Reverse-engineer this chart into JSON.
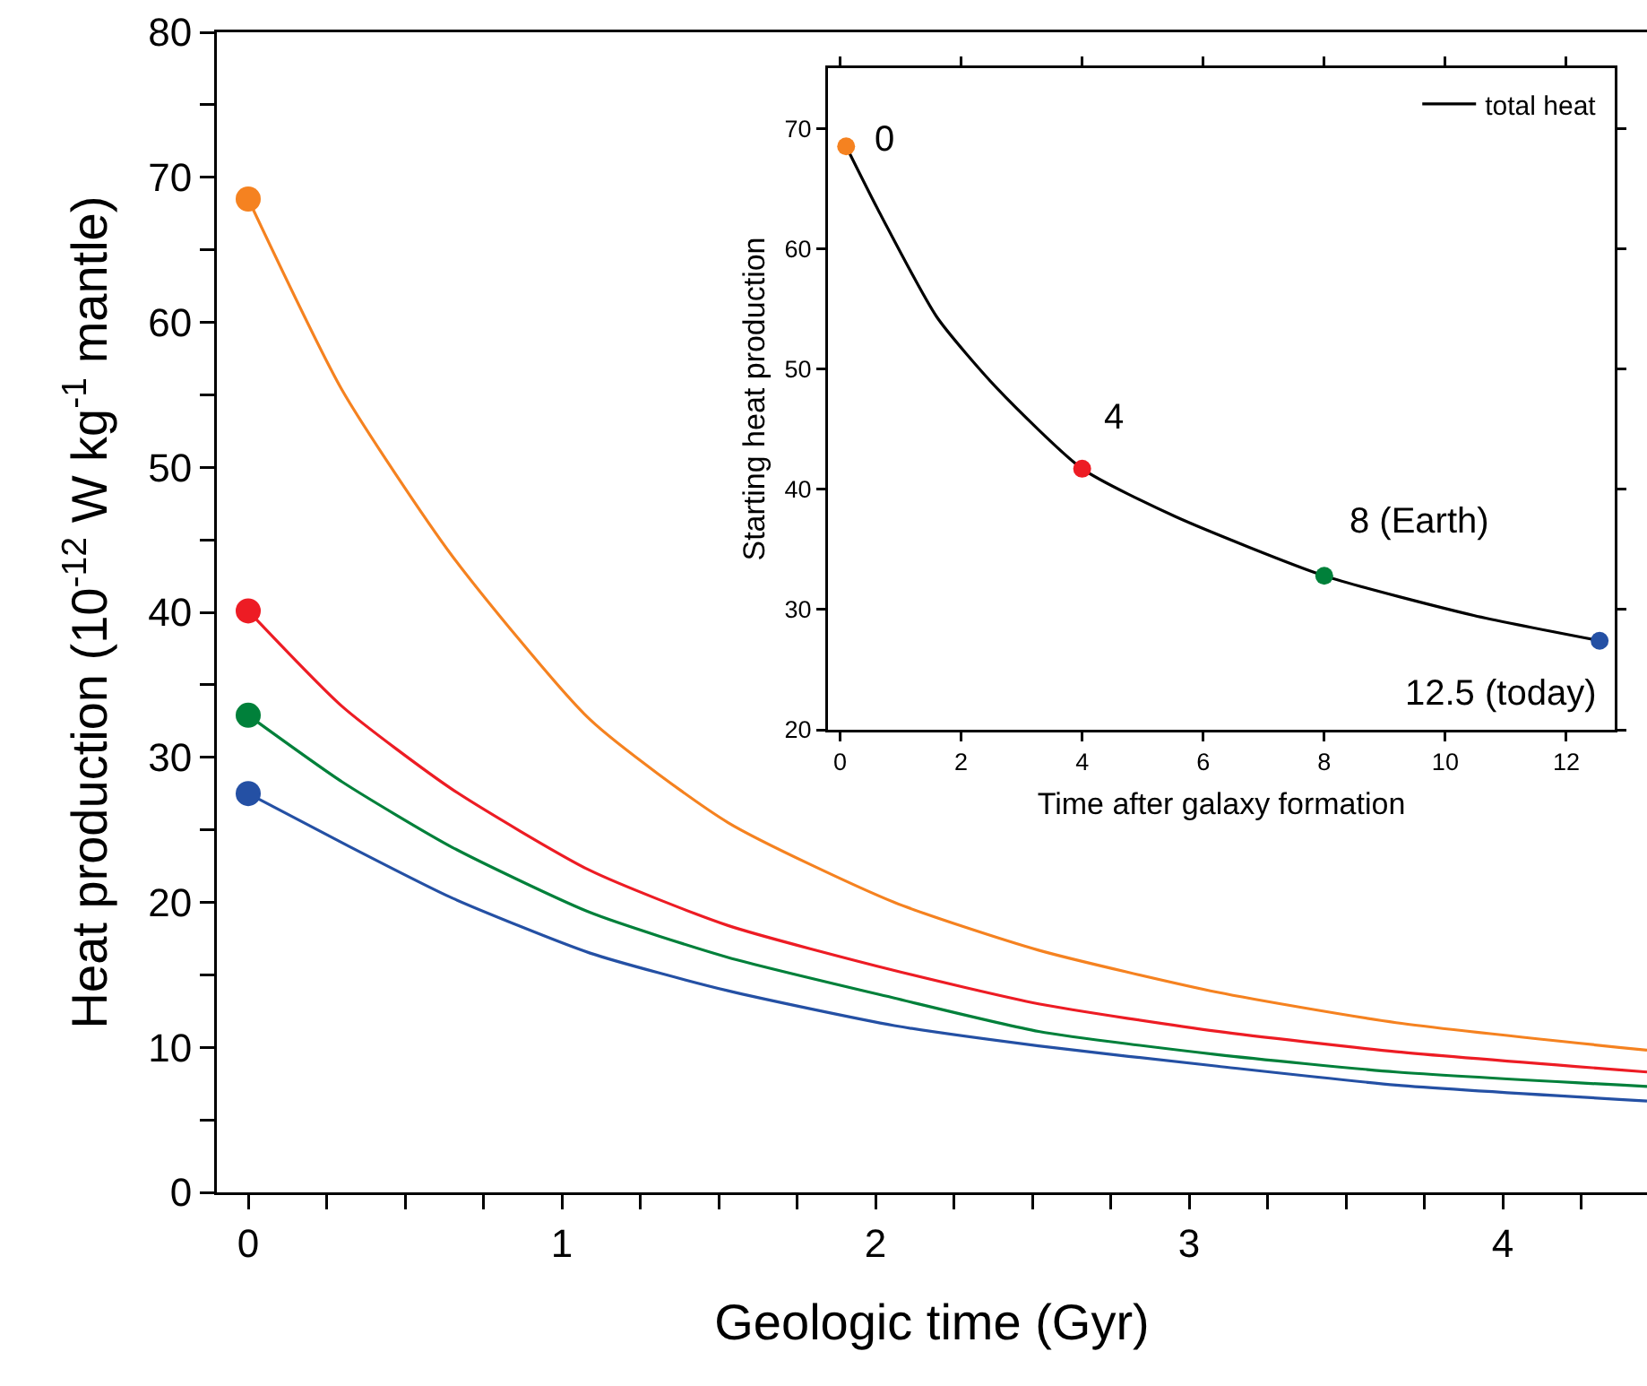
{
  "chart_data": [
    {
      "type": "line",
      "xlabel": "Geologic time (Gyr)",
      "ylabel": "Heat production (10$^{-12}$ W kg$^{-1}$ mantle)",
      "xlim": [
        -0.1,
        4.46
      ],
      "ylim": [
        0,
        80
      ],
      "xticks": [
        0,
        {
          "value": 0.25,
          "label": null
        },
        {
          "value": 0.5,
          "label": null
        },
        {
          "value": 0.75,
          "label": null
        },
        1,
        {
          "value": 1.25,
          "label": null
        },
        {
          "value": 1.5,
          "label": null
        },
        {
          "value": 1.75,
          "label": null
        },
        2,
        {
          "value": 2.25,
          "label": null
        },
        {
          "value": 2.5,
          "label": null
        },
        {
          "value": 2.75,
          "label": null
        },
        3,
        {
          "value": 3.25,
          "label": null
        },
        {
          "value": 3.5,
          "label": null
        },
        {
          "value": 3.75,
          "label": null
        },
        4,
        {
          "value": 4.25,
          "label": null
        }
      ],
      "yticks": [
        0,
        {
          "value": 5,
          "label": null
        },
        10,
        {
          "value": 15,
          "label": null
        },
        20,
        {
          "value": 25,
          "label": null
        },
        30,
        {
          "value": 35,
          "label": null
        },
        40,
        {
          "value": 45,
          "label": null
        },
        50,
        {
          "value": 55,
          "label": null
        },
        60,
        {
          "value": 65,
          "label": null
        },
        70,
        {
          "value": 75,
          "label": null
        },
        80
      ],
      "grid": false,
      "legend": false,
      "series": [
        {
          "color": "#f58220",
          "marker": "none",
          "x": [
            0,
            0.3,
            0.65,
            1.09,
            1.53,
            2.06,
            2.52,
            3.09,
            3.66,
            4.46
          ],
          "values": [
            68.5,
            55.3,
            43.9,
            32.6,
            25.5,
            20.0,
            16.7,
            13.8,
            11.7,
            9.8
          ]
        },
        {
          "color": "#ed1c24",
          "marker": "none",
          "x": [
            0,
            0.3,
            0.65,
            1.09,
            1.53,
            2.06,
            2.52,
            3.09,
            3.66,
            4.46
          ],
          "values": [
            40.1,
            33.5,
            27.8,
            22.2,
            18.4,
            15.3,
            13.0,
            11.1,
            9.7,
            8.3
          ]
        },
        {
          "color": "#00803a",
          "marker": "none",
          "x": [
            0,
            0.3,
            0.65,
            1.09,
            1.53,
            2.06,
            2.52,
            3.09,
            3.66,
            4.46
          ],
          "values": [
            32.9,
            28.3,
            23.8,
            19.3,
            16.2,
            13.4,
            11.1,
            9.5,
            8.3,
            7.3
          ]
        },
        {
          "color": "#2450a4",
          "marker": "none",
          "x": [
            0,
            0.3,
            0.65,
            1.09,
            1.53,
            2.06,
            2.52,
            3.09,
            3.66,
            4.46
          ],
          "values": [
            27.5,
            24.1,
            20.3,
            16.5,
            13.9,
            11.5,
            10.1,
            8.7,
            7.4,
            6.3
          ]
        },
        {
          "type": "scatter",
          "marker": "circle",
          "x": [
            0,
            0,
            0,
            0
          ],
          "values": [
            68.5,
            40.1,
            32.9,
            27.5
          ],
          "colors": [
            "#f58220",
            "#ed1c24",
            "#00803a",
            "#2450a4"
          ]
        }
      ]
    },
    {
      "type": "line",
      "xlabel": "Time after galaxy formation",
      "ylabel": "Starting heat production",
      "xlim": [
        -0.2,
        12.8
      ],
      "ylim": [
        20,
        75
      ],
      "xticks": [
        0,
        2,
        4,
        6,
        8,
        10,
        12
      ],
      "yticks": [
        20,
        30,
        40,
        50,
        60,
        70
      ],
      "grid": false,
      "legend": "top right",
      "series": [
        {
          "name": "total heat",
          "color": "#000000",
          "marker": "none",
          "x": [
            0.1,
            0.62,
            1.6,
            2.59,
            4,
            5.55,
            8,
            10.47,
            12.55
          ],
          "values": [
            68.5,
            63.3,
            54.3,
            48.4,
            41.7,
            37.7,
            32.8,
            29.5,
            27.4
          ]
        },
        {
          "type": "scatter",
          "marker": "circle",
          "x": [
            0.1,
            4,
            8,
            12.55
          ],
          "values": [
            68.5,
            41.7,
            32.8,
            27.4
          ],
          "colors": [
            "#f58220",
            "#ed1c24",
            "#00803a",
            "#2450a4"
          ]
        }
      ],
      "annotations": [
        {
          "text": "0",
          "x": 0.1,
          "y": 68.5
        },
        {
          "text": "4",
          "x": 4,
          "y": 41.7
        },
        {
          "text": "8 (Earth)",
          "x": 8,
          "y": 32.8
        },
        {
          "text": "12.5 (today)",
          "x": 12.55,
          "y": 27.4
        }
      ]
    }
  ]
}
